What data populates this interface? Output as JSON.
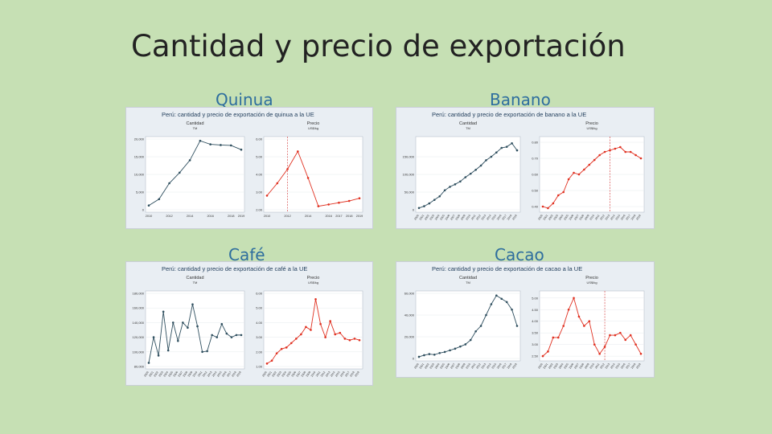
{
  "slide": {
    "title": "Cantidad y precio de exportación"
  },
  "charts": [
    {
      "key": "quinua",
      "caption": "Quinua",
      "title": "Perú: cantidad y precio de exportación de quinua a la UE",
      "colors": {
        "quantity": "#2f4f5f",
        "price": "#e03020"
      },
      "quantity": {
        "label": "Cantidad",
        "unit": "TM",
        "x": [
          "2010",
          "2011",
          "2012",
          "2013",
          "2014",
          "2015",
          "2016",
          "2017",
          "2018",
          "2019"
        ],
        "values": [
          1200,
          3000,
          7500,
          10500,
          14000,
          19500,
          18500,
          18300,
          18200,
          17000
        ],
        "ylim": [
          0,
          20000
        ],
        "yticks": [
          "0",
          "5,000",
          "10,000",
          "15,000",
          "20,000"
        ],
        "xticks": [
          "2010",
          "2012",
          "2014",
          "2016",
          "2018",
          "2019"
        ]
      },
      "price": {
        "label": "Precio",
        "unit": "US$/kg",
        "x": [
          "2010",
          "2011",
          "2012",
          "2013",
          "2014",
          "2015",
          "2016",
          "2017",
          "2018",
          "2019"
        ],
        "values": [
          2.8,
          3.5,
          4.3,
          5.3,
          3.8,
          2.2,
          2.3,
          2.4,
          2.5,
          2.65
        ],
        "ylim": [
          2,
          6
        ],
        "yticks": [
          "2.00",
          "3.00",
          "4.00",
          "5.00",
          "6.00"
        ],
        "xticks": [
          "2010",
          "2012",
          "2014",
          "2016",
          "2017",
          "2018",
          "2019"
        ],
        "ref_index": 2
      }
    },
    {
      "key": "banano",
      "caption": "Banano",
      "title": "Perú: cantidad y precio de exportación de banano a la UE",
      "colors": {
        "quantity": "#2f4f5f",
        "price": "#e03020"
      },
      "quantity": {
        "label": "Cantidad",
        "unit": "TM",
        "x": [
          "2000",
          "2001",
          "2002",
          "2003",
          "2004",
          "2005",
          "2006",
          "2007",
          "2008",
          "2009",
          "2010",
          "2011",
          "2012",
          "2013",
          "2014",
          "2015",
          "2016",
          "2017",
          "2018",
          "2019"
        ],
        "values": [
          5000,
          10000,
          18000,
          28000,
          38000,
          55000,
          65000,
          72000,
          80000,
          92000,
          102000,
          113000,
          125000,
          140000,
          150000,
          162000,
          175000,
          178000,
          188000,
          168000
        ],
        "ylim": [
          0,
          200000
        ],
        "yticks": [
          "0",
          "50,000",
          "100,000",
          "150,000"
        ],
        "xticks": []
      },
      "price": {
        "label": "Precio",
        "unit": "US$/kg",
        "x": [
          "2000",
          "2001",
          "2002",
          "2003",
          "2004",
          "2005",
          "2006",
          "2007",
          "2008",
          "2009",
          "2010",
          "2011",
          "2012",
          "2013",
          "2014",
          "2015",
          "2016",
          "2017",
          "2018",
          "2019"
        ],
        "values": [
          0.4,
          0.39,
          0.42,
          0.47,
          0.49,
          0.57,
          0.61,
          0.6,
          0.63,
          0.66,
          0.69,
          0.72,
          0.74,
          0.75,
          0.76,
          0.77,
          0.74,
          0.74,
          0.72,
          0.7
        ],
        "ylim": [
          0.38,
          0.82
        ],
        "yticks": [
          "0.40",
          "0.50",
          "0.60",
          "0.70",
          "0.80"
        ],
        "xticks": [],
        "ref_index": 13
      }
    },
    {
      "key": "cafe",
      "caption": "Café",
      "title": "Perú: cantidad y precio de exportación de café a la UE",
      "colors": {
        "quantity": "#2f4f5f",
        "price": "#e03020"
      },
      "quantity": {
        "label": "Cantidad",
        "unit": "TM",
        "x": [
          "2000",
          "2001",
          "2002",
          "2003",
          "2004",
          "2005",
          "2006",
          "2007",
          "2008",
          "2009",
          "2010",
          "2011",
          "2012",
          "2013",
          "2014",
          "2015",
          "2016",
          "2017",
          "2018",
          "2019"
        ],
        "values": [
          85000,
          120000,
          95000,
          155000,
          102000,
          140000,
          115000,
          140000,
          133000,
          165000,
          135000,
          100000,
          101000,
          123000,
          120000,
          138000,
          125000,
          120000,
          123000,
          123000
        ],
        "ylim": [
          80000,
          180000
        ],
        "yticks": [
          "80,000",
          "100,000",
          "120,000",
          "140,000",
          "160,000",
          "180,000"
        ],
        "xticks": []
      },
      "price": {
        "label": "Precio",
        "unit": "US$/kg",
        "x": [
          "2000",
          "2001",
          "2002",
          "2003",
          "2004",
          "2005",
          "2006",
          "2007",
          "2008",
          "2009",
          "2010",
          "2011",
          "2012",
          "2013",
          "2014",
          "2015",
          "2016",
          "2017",
          "2018",
          "2019"
        ],
        "values": [
          1.2,
          1.4,
          1.9,
          2.2,
          2.3,
          2.6,
          2.9,
          3.2,
          3.7,
          3.5,
          5.6,
          3.9,
          3.0,
          4.1,
          3.2,
          3.3,
          2.9,
          2.8,
          2.9,
          2.8
        ],
        "ylim": [
          1,
          6
        ],
        "yticks": [
          "1.00",
          "2.00",
          "3.00",
          "4.00",
          "5.00",
          "6.00"
        ],
        "xticks": []
      }
    },
    {
      "key": "cacao",
      "caption": "Cacao",
      "title": "Perú: cantidad y precio de exportación de cacao a la UE",
      "colors": {
        "quantity": "#2f4f5f",
        "price": "#e03020"
      },
      "quantity": {
        "label": "Cantidad",
        "unit": "TM",
        "x": [
          "2000",
          "2001",
          "2002",
          "2003",
          "2004",
          "2005",
          "2006",
          "2007",
          "2008",
          "2009",
          "2010",
          "2011",
          "2012",
          "2013",
          "2014",
          "2015",
          "2016",
          "2017",
          "2018",
          "2019"
        ],
        "values": [
          1500,
          3000,
          4000,
          3500,
          5000,
          6000,
          7500,
          9000,
          11000,
          13000,
          17000,
          25000,
          30000,
          40000,
          50000,
          58000,
          55000,
          52000,
          45000,
          30000
        ],
        "ylim": [
          0,
          60000
        ],
        "yticks": [
          "0",
          "20,000",
          "40,000",
          "60,000"
        ],
        "xticks": []
      },
      "price": {
        "label": "Precio",
        "unit": "US$/kg",
        "x": [
          "2000",
          "2001",
          "2002",
          "2003",
          "2004",
          "2005",
          "2006",
          "2007",
          "2008",
          "2009",
          "2010",
          "2011",
          "2012",
          "2013",
          "2014",
          "2015",
          "2016",
          "2017",
          "2018",
          "2019"
        ],
        "values": [
          2.5,
          2.7,
          3.3,
          3.3,
          3.8,
          4.5,
          5.0,
          4.2,
          3.8,
          4.0,
          3.0,
          2.6,
          2.9,
          3.4,
          3.4,
          3.5,
          3.2,
          3.4,
          3.0,
          2.6
        ],
        "ylim": [
          2.4,
          5.2
        ],
        "yticks": [
          "2.50",
          "3.00",
          "3.50",
          "4.00",
          "4.50",
          "5.00"
        ],
        "xticks": [],
        "ref_index": 12
      }
    }
  ]
}
